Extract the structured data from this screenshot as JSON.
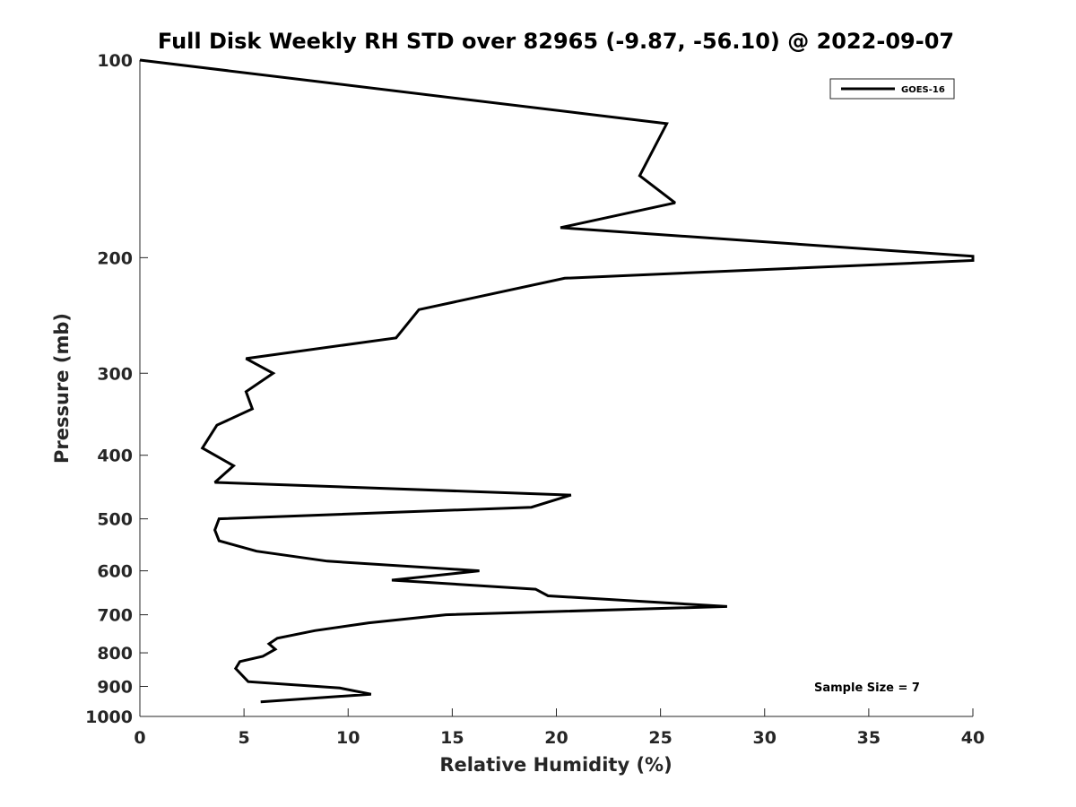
{
  "chart_data": {
    "type": "line",
    "title": "Full Disk Weekly RH STD over 82965 (-9.87, -56.10) @ 2022-09-07",
    "xlabel": "Relative Humidity (%)",
    "ylabel": "Pressure (mb)",
    "xlim": [
      0,
      40
    ],
    "ylim": [
      100,
      1000
    ],
    "yscale": "log",
    "y_reversed": true,
    "grid": false,
    "legend_position": "top-right",
    "x_ticks": [
      "0",
      "5",
      "10",
      "15",
      "20",
      "25",
      "30",
      "35",
      "40"
    ],
    "y_ticks": [
      "100",
      "200",
      "300",
      "400",
      "500",
      "600",
      "700",
      "800",
      "900",
      "1000"
    ],
    "annotation": "Sample Size = 7",
    "series": [
      {
        "name": "GOES-16",
        "color": "#000000",
        "points": [
          [
            0.0,
            100
          ],
          [
            25.3,
            125
          ],
          [
            24.0,
            150
          ],
          [
            25.7,
            165
          ],
          [
            20.2,
            180
          ],
          [
            40.0,
            199
          ],
          [
            40.0,
            202
          ],
          [
            20.4,
            215
          ],
          [
            13.4,
            240
          ],
          [
            12.3,
            265
          ],
          [
            5.1,
            285
          ],
          [
            6.4,
            300
          ],
          [
            5.1,
            320
          ],
          [
            5.4,
            340
          ],
          [
            3.7,
            360
          ],
          [
            3.0,
            390
          ],
          [
            4.5,
            415
          ],
          [
            3.6,
            440
          ],
          [
            20.7,
            460
          ],
          [
            18.8,
            480
          ],
          [
            3.8,
            500
          ],
          [
            3.6,
            520
          ],
          [
            3.8,
            540
          ],
          [
            5.6,
            560
          ],
          [
            9.0,
            580
          ],
          [
            16.3,
            600
          ],
          [
            12.1,
            620
          ],
          [
            19.0,
            640
          ],
          [
            19.6,
            655
          ],
          [
            28.2,
            680
          ],
          [
            14.7,
            700
          ],
          [
            11.0,
            720
          ],
          [
            8.4,
            740
          ],
          [
            6.6,
            760
          ],
          [
            6.2,
            775
          ],
          [
            6.5,
            790
          ],
          [
            5.9,
            810
          ],
          [
            4.8,
            825
          ],
          [
            4.6,
            845
          ],
          [
            4.9,
            865
          ],
          [
            5.2,
            885
          ],
          [
            9.6,
            905
          ],
          [
            11.1,
            925
          ],
          [
            5.8,
            950
          ]
        ]
      }
    ]
  }
}
